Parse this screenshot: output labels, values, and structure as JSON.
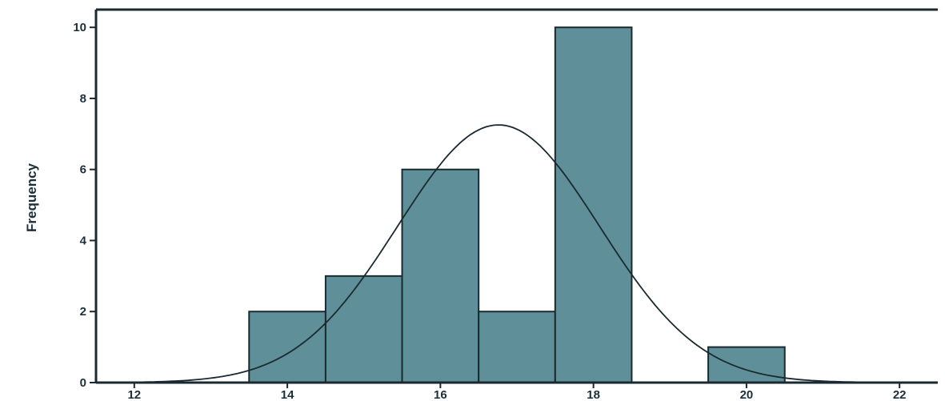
{
  "chart_data": {
    "type": "bar",
    "subtype": "histogram-with-normal-curve",
    "xlabel": "",
    "ylabel": "Frequency",
    "xlim": [
      11.5,
      22.5
    ],
    "ylim": [
      0,
      10.5
    ],
    "x_ticks": [
      12,
      14,
      16,
      18,
      20,
      22
    ],
    "y_ticks": [
      0,
      2,
      4,
      6,
      8,
      10
    ],
    "bins": [
      {
        "from": 13.5,
        "to": 14.5,
        "count": 2
      },
      {
        "from": 14.5,
        "to": 15.5,
        "count": 3
      },
      {
        "from": 15.5,
        "to": 16.5,
        "count": 6
      },
      {
        "from": 16.5,
        "to": 17.5,
        "count": 2
      },
      {
        "from": 17.5,
        "to": 18.5,
        "count": 10
      },
      {
        "from": 19.5,
        "to": 20.5,
        "count": 1
      }
    ],
    "normal_curve": {
      "mean": 16.76,
      "std_dev": 1.32,
      "n": 24,
      "bin_width": 1
    },
    "grid": false,
    "colors": {
      "bar_fill": "#5f8f98",
      "bar_stroke": "#1a2a30",
      "curve": "#1a2a30",
      "axis": "#1a2a30",
      "text": "#1d2f3a"
    }
  }
}
